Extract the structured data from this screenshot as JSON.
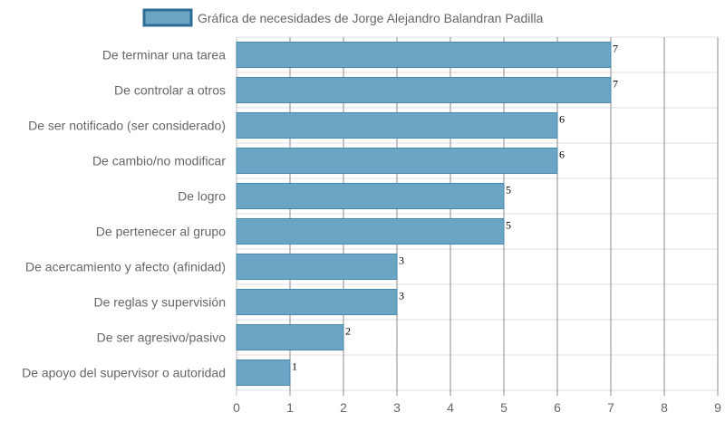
{
  "chart_data": {
    "type": "bar",
    "orientation": "horizontal",
    "categories": [
      "De terminar una tarea",
      "De controlar a otros",
      "De ser notificado (ser considerado)",
      "De cambio/no modificar",
      "De logro",
      "De pertenecer al grupo",
      "De acercamiento y afecto (afinidad)",
      "De reglas y supervisión",
      "De ser agresivo/pasivo",
      "De apoyo del supervisor o autoridad"
    ],
    "series": [
      {
        "name": "Gráfica de necesidades de Jorge Alejandro Balandran Padilla",
        "values": [
          7,
          7,
          6,
          6,
          5,
          5,
          3,
          3,
          2,
          1
        ]
      }
    ],
    "xlim": [
      0,
      9
    ],
    "xticks": [
      0,
      1,
      2,
      3,
      4,
      5,
      6,
      7,
      8,
      9
    ],
    "grid": true,
    "legend_position": "top",
    "data_labels": true,
    "colors": {
      "bar_fill": "#6ba5c4",
      "bar_stroke": "#4a87a8",
      "legend_fill": "#6ba5c4",
      "legend_stroke": "#2e6e96",
      "grid": "#e2e2e2",
      "vgrid": "#8c8c8c",
      "text": "#666666"
    }
  }
}
